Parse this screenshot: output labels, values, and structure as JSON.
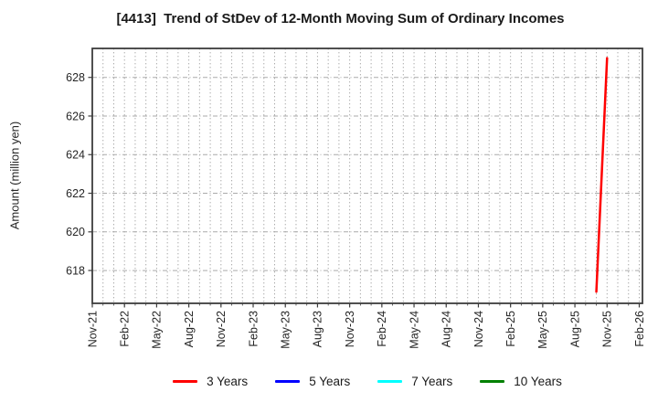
{
  "theme": {
    "background": "#ffffff",
    "text_color": "#262626",
    "title_color": "#1a1a1a",
    "grid_color": "#aaaaaa",
    "frame_color": "#3c3c3c"
  },
  "chart_data": {
    "type": "line",
    "title": "[4413]  Trend of StDev of 12-Month Moving Sum of Ordinary Incomes",
    "xlabel": "",
    "ylabel": "Amount (million yen)",
    "y_ticks": [
      618,
      620,
      622,
      624,
      626,
      628
    ],
    "ylim": [
      616.3,
      629.5
    ],
    "x_tick_labels": [
      "Nov-21",
      "Feb-22",
      "May-22",
      "Aug-22",
      "Nov-22",
      "Feb-23",
      "May-23",
      "Aug-23",
      "Nov-23",
      "Feb-24",
      "May-24",
      "Aug-24",
      "Nov-24",
      "Feb-25",
      "May-25",
      "Aug-25",
      "Nov-25",
      "Feb-26"
    ],
    "x_tick_month_offsets": [
      0,
      3,
      6,
      9,
      12,
      15,
      18,
      21,
      24,
      27,
      30,
      33,
      36,
      39,
      42,
      45,
      48,
      51
    ],
    "xlim_months": [
      0,
      51.3
    ],
    "grid": true,
    "minor_grid_every_month": true,
    "legend_position": "bottom",
    "series": [
      {
        "name": "3 Years",
        "color": "#ff0000",
        "points": [
          {
            "x_label": "Oct-25",
            "month_offset": 47,
            "value": 616.9
          },
          {
            "x_label": "Nov-25",
            "month_offset": 48,
            "value": 629.0
          }
        ]
      },
      {
        "name": "5 Years",
        "color": "#0000ff",
        "points": []
      },
      {
        "name": "7 Years",
        "color": "#00ffff",
        "points": []
      },
      {
        "name": "10 Years",
        "color": "#008000",
        "points": []
      }
    ]
  }
}
